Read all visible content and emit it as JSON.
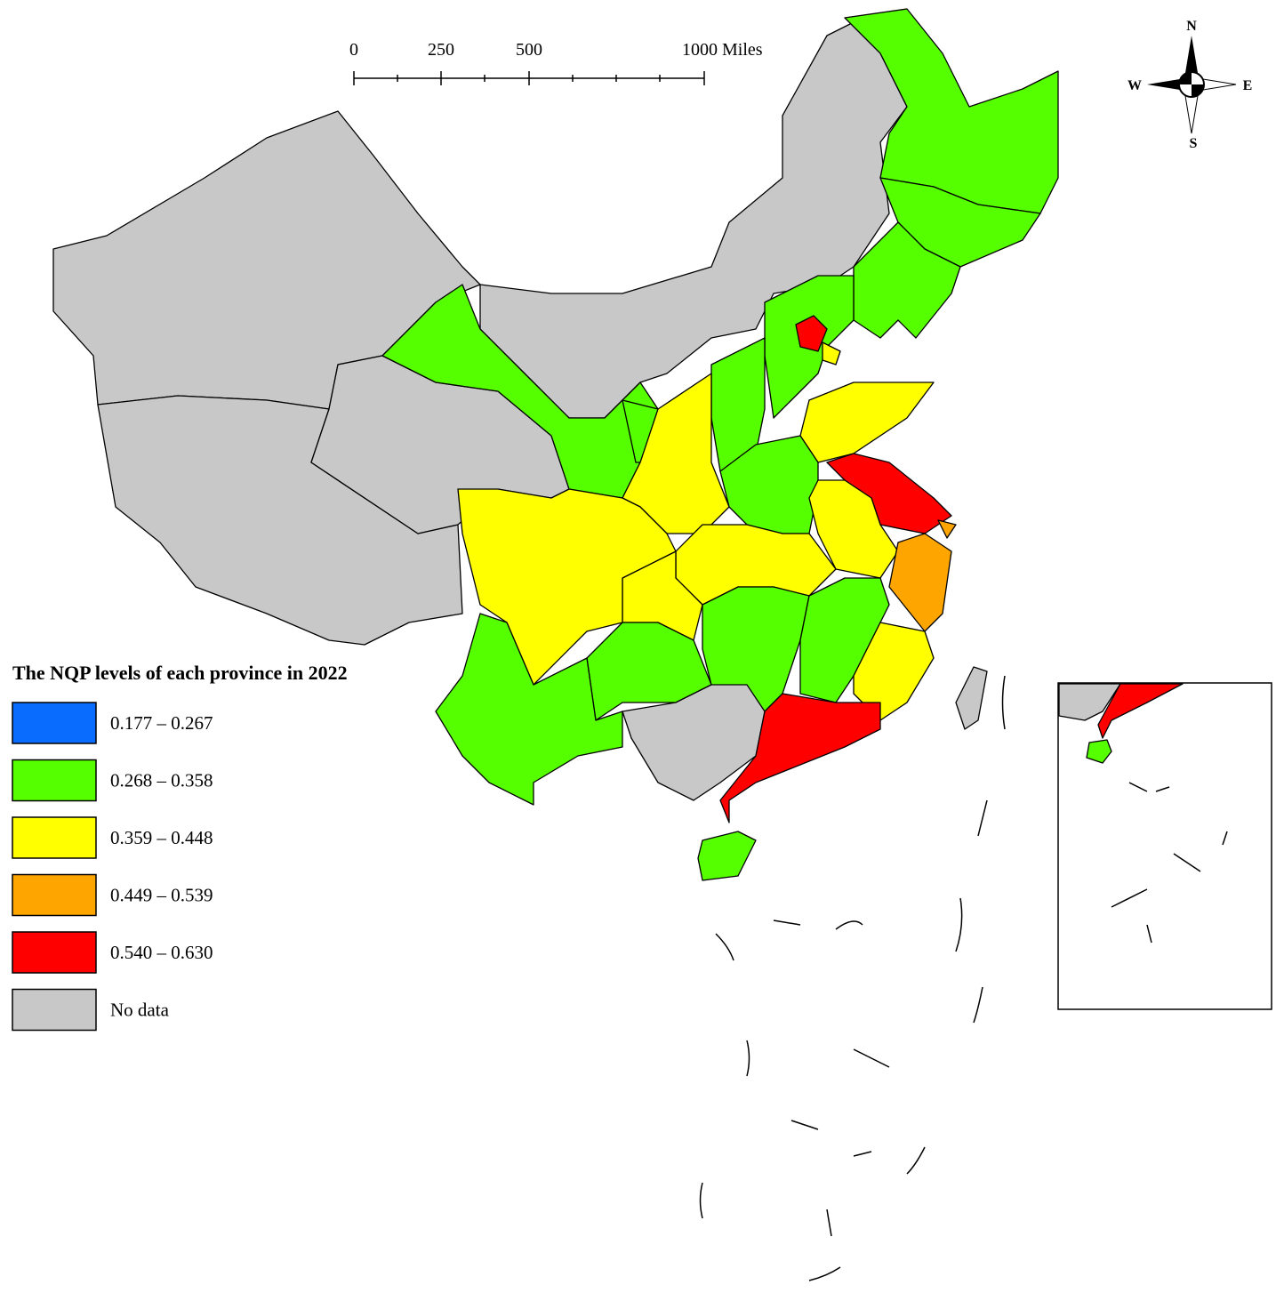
{
  "scale_bar": {
    "labels": [
      "0",
      "250",
      "500",
      "1000 Miles"
    ]
  },
  "compass": {
    "north": "N",
    "south": "S",
    "west": "W",
    "east": "E"
  },
  "legend": {
    "title": "The NQP levels of each province in 2022",
    "items": [
      {
        "label": "0.177 – 0.267",
        "color": "#0a6cff"
      },
      {
        "label": "0.268 – 0.358",
        "color": "#55ff00"
      },
      {
        "label": "0.359 – 0.448",
        "color": "#ffff00"
      },
      {
        "label": "0.449 – 0.539",
        "color": "#ffa500"
      },
      {
        "label": "0.540 – 0.630",
        "color": "#ff0000"
      },
      {
        "label": "No data",
        "color": "#c8c8c8"
      }
    ]
  }
}
